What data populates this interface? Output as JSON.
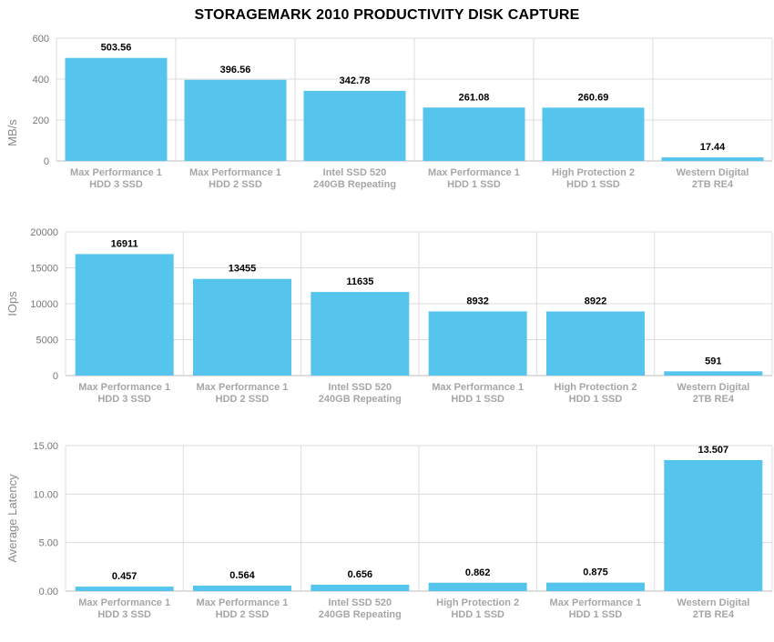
{
  "title": "STORAGEMARK 2010 PRODUCTIVITY DISK CAPTURE",
  "colors": {
    "bar": "#55c5ee",
    "grid": "#dcdcdc",
    "category_text": "#a6a6a6"
  },
  "chart_data": [
    {
      "type": "bar",
      "ylabel": "MB/s",
      "ylim": [
        0,
        600
      ],
      "yticks": [
        "0",
        "200",
        "400",
        "600"
      ],
      "grid": true,
      "categories": [
        [
          "Max Performance 1",
          "HDD 3 SSD"
        ],
        [
          "Max Performance 1",
          "HDD 2 SSD"
        ],
        [
          "Intel SSD 520",
          "240GB Repeating"
        ],
        [
          "Max Performance 1",
          "HDD 1 SSD"
        ],
        [
          "High Protection 2",
          "HDD 1 SSD"
        ],
        [
          "Western Digital",
          "2TB RE4"
        ]
      ],
      "values": [
        503.56,
        396.56,
        342.78,
        261.08,
        260.69,
        17.44
      ],
      "value_labels": [
        "503.56",
        "396.56",
        "342.78",
        "261.08",
        "260.69",
        "17.44"
      ]
    },
    {
      "type": "bar",
      "ylabel": "IOps",
      "ylim": [
        0,
        20000
      ],
      "yticks": [
        "0",
        "5000",
        "10000",
        "15000",
        "20000"
      ],
      "grid": true,
      "categories": [
        [
          "Max Performance 1",
          "HDD 3 SSD"
        ],
        [
          "Max Performance 1",
          "HDD 2 SSD"
        ],
        [
          "Intel SSD 520",
          "240GB Repeating"
        ],
        [
          "Max Performance 1",
          "HDD 1 SSD"
        ],
        [
          "High Protection 2",
          "HDD 1 SSD"
        ],
        [
          "Western Digital",
          "2TB RE4"
        ]
      ],
      "values": [
        16911,
        13455,
        11635,
        8932,
        8922,
        591
      ],
      "value_labels": [
        "16911",
        "13455",
        "11635",
        "8932",
        "8922",
        "591"
      ]
    },
    {
      "type": "bar",
      "ylabel": "Average Latency",
      "ylim": [
        0,
        15
      ],
      "yticks": [
        "0.00",
        "5.00",
        "10.00",
        "15.00"
      ],
      "grid": true,
      "categories": [
        [
          "Max Performance 1",
          "HDD 3 SSD"
        ],
        [
          "Max Performance 1",
          "HDD 2 SSD"
        ],
        [
          "Intel SSD 520",
          "240GB Repeating"
        ],
        [
          "High Protection 2",
          "HDD 1 SSD"
        ],
        [
          "Max Performance 1",
          "HDD 1 SSD"
        ],
        [
          "Western Digital",
          "2TB RE4"
        ]
      ],
      "values": [
        0.457,
        0.564,
        0.656,
        0.862,
        0.875,
        13.507
      ],
      "value_labels": [
        "0.457",
        "0.564",
        "0.656",
        "0.862",
        "0.875",
        "13.507"
      ]
    }
  ]
}
